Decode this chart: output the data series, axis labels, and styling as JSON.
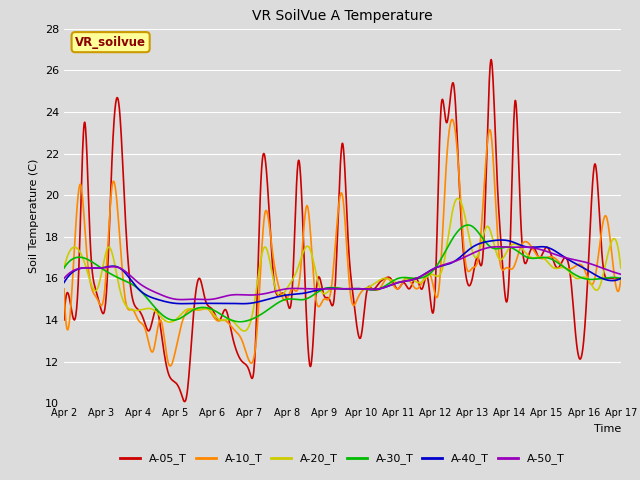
{
  "title": "VR SoilVue A Temperature",
  "xlabel": "Time",
  "ylabel": "Soil Temperature (C)",
  "ylim": [
    10,
    28
  ],
  "xlim": [
    0,
    15
  ],
  "bg_color": "#dcdcdc",
  "plot_bg_color": "#dcdcdc",
  "grid_color": "white",
  "annotation_text": "VR_soilvue",
  "annotation_bg": "#ffff99",
  "annotation_border": "#cc9900",
  "xtick_labels": [
    "Apr 2",
    "Apr 3",
    "Apr 4",
    "Apr 5",
    "Apr 6",
    "Apr 7",
    "Apr 8",
    "Apr 9",
    "Apr 10",
    "Apr 11",
    "Apr 12",
    "Apr 13",
    "Apr 14",
    "Apr 15",
    "Apr 16",
    "Apr 17"
  ],
  "ytick_labels": [
    10,
    12,
    14,
    16,
    18,
    20,
    22,
    24,
    26,
    28
  ],
  "series": {
    "A-05_T": {
      "color": "#cc0000",
      "lw": 1.2
    },
    "A-10_T": {
      "color": "#ff8800",
      "lw": 1.2
    },
    "A-20_T": {
      "color": "#cccc00",
      "lw": 1.2
    },
    "A-30_T": {
      "color": "#00bb00",
      "lw": 1.2
    },
    "A-40_T": {
      "color": "#0000cc",
      "lw": 1.2
    },
    "A-50_T": {
      "color": "#9900bb",
      "lw": 1.2
    }
  },
  "legend_order": [
    "A-05_T",
    "A-10_T",
    "A-20_T",
    "A-30_T",
    "A-40_T",
    "A-50_T"
  ],
  "A05_t": [
    0.0,
    0.2,
    0.4,
    0.55,
    0.7,
    0.85,
    1.0,
    1.15,
    1.3,
    1.5,
    1.65,
    1.8,
    2.0,
    2.15,
    2.3,
    2.5,
    2.65,
    2.8,
    3.0,
    3.15,
    3.3,
    3.5,
    3.65,
    3.8,
    4.0,
    4.2,
    4.35,
    4.5,
    4.65,
    4.8,
    5.0,
    5.15,
    5.3,
    5.5,
    5.65,
    5.8,
    6.0,
    6.15,
    6.3,
    6.5,
    6.65,
    6.8,
    7.0,
    7.15,
    7.3,
    7.5,
    7.65,
    7.8,
    8.0,
    8.15,
    8.3,
    8.5,
    8.65,
    8.8,
    9.0,
    9.15,
    9.3,
    9.5,
    9.65,
    9.8,
    10.0,
    10.15,
    10.3,
    10.5,
    10.65,
    10.8,
    11.0,
    11.15,
    11.3,
    11.5,
    11.65,
    11.8,
    12.0,
    12.15,
    12.3,
    12.5,
    12.65,
    12.8,
    13.0,
    13.15,
    13.3,
    13.5,
    13.65,
    13.8,
    14.0,
    14.15,
    14.3,
    14.5,
    14.65,
    14.8,
    15.0
  ],
  "A05_v": [
    14.0,
    14.5,
    16.5,
    23.5,
    18.0,
    15.5,
    14.5,
    15.5,
    22.0,
    24.0,
    19.0,
    15.5,
    14.5,
    14.0,
    13.5,
    14.5,
    13.0,
    11.5,
    11.0,
    10.5,
    10.3,
    14.5,
    16.0,
    15.0,
    14.5,
    14.0,
    14.5,
    13.5,
    12.5,
    12.0,
    11.5,
    12.5,
    20.5,
    20.0,
    16.0,
    15.2,
    15.0,
    15.5,
    21.5,
    15.5,
    11.8,
    15.5,
    15.2,
    15.0,
    15.5,
    22.5,
    18.0,
    15.0,
    13.2,
    15.3,
    15.5,
    15.8,
    16.0,
    16.0,
    15.5,
    15.8,
    15.5,
    16.0,
    15.5,
    16.0,
    15.5,
    24.0,
    23.5,
    25.3,
    20.5,
    16.5,
    16.0,
    17.0,
    17.5,
    26.5,
    21.5,
    17.0,
    16.5,
    24.5,
    19.0,
    17.0,
    17.5,
    17.0,
    17.5,
    17.0,
    16.5,
    17.0,
    16.0,
    13.0,
    13.0,
    17.5,
    21.5,
    17.0,
    16.0,
    16.0,
    16.0
  ],
  "A10_t": [
    0.0,
    0.25,
    0.45,
    0.6,
    0.75,
    0.9,
    1.1,
    1.3,
    1.5,
    1.65,
    1.85,
    2.0,
    2.2,
    2.4,
    2.6,
    2.8,
    3.0,
    3.2,
    3.5,
    3.7,
    3.9,
    4.1,
    4.3,
    4.6,
    4.8,
    5.0,
    5.2,
    5.4,
    5.6,
    5.8,
    6.0,
    6.15,
    6.35,
    6.55,
    6.75,
    7.0,
    7.2,
    7.5,
    7.7,
    7.9,
    8.1,
    8.3,
    8.5,
    8.7,
    9.0,
    9.2,
    9.5,
    9.7,
    9.9,
    10.1,
    10.3,
    10.6,
    10.8,
    11.0,
    11.2,
    11.5,
    11.7,
    11.9,
    12.1,
    12.3,
    12.6,
    12.8,
    13.0,
    13.2,
    13.5,
    13.7,
    14.0,
    14.3,
    14.6,
    14.8,
    15.0
  ],
  "A10_v": [
    15.5,
    16.5,
    20.5,
    17.5,
    15.5,
    15.0,
    15.5,
    20.5,
    18.0,
    15.0,
    14.5,
    14.0,
    13.5,
    12.5,
    14.0,
    12.0,
    12.5,
    14.0,
    14.5,
    14.5,
    14.5,
    14.0,
    14.0,
    13.5,
    13.0,
    12.0,
    13.5,
    19.0,
    17.5,
    15.5,
    15.0,
    15.5,
    16.0,
    19.5,
    15.5,
    15.0,
    15.5,
    20.0,
    15.5,
    15.0,
    15.5,
    15.5,
    15.5,
    16.0,
    15.5,
    16.0,
    15.5,
    16.0,
    16.0,
    15.5,
    21.5,
    22.0,
    17.0,
    16.5,
    17.5,
    23.0,
    17.5,
    16.5,
    16.5,
    17.5,
    17.5,
    17.0,
    17.0,
    17.0,
    16.5,
    16.5,
    16.5,
    16.0,
    19.0,
    16.5,
    16.0
  ],
  "A20_t": [
    0.0,
    0.3,
    0.6,
    0.9,
    1.2,
    1.5,
    1.8,
    2.1,
    2.4,
    2.7,
    3.0,
    3.3,
    3.6,
    3.9,
    4.2,
    4.5,
    4.8,
    5.1,
    5.4,
    5.7,
    6.0,
    6.3,
    6.6,
    6.9,
    7.2,
    7.5,
    7.8,
    8.1,
    8.4,
    8.7,
    9.0,
    9.3,
    9.6,
    9.9,
    10.2,
    10.5,
    10.8,
    11.1,
    11.4,
    11.7,
    12.0,
    12.3,
    12.6,
    12.9,
    13.2,
    13.5,
    13.8,
    14.1,
    14.4,
    14.7,
    15.0
  ],
  "A20_v": [
    16.5,
    17.5,
    16.5,
    15.5,
    17.5,
    15.5,
    14.5,
    14.5,
    14.5,
    14.0,
    14.0,
    14.5,
    14.5,
    14.5,
    14.0,
    14.0,
    13.5,
    14.5,
    17.5,
    15.5,
    15.5,
    16.5,
    17.5,
    15.5,
    15.5,
    15.5,
    15.5,
    15.5,
    15.8,
    16.0,
    15.8,
    16.0,
    15.8,
    16.2,
    16.5,
    19.5,
    19.0,
    17.0,
    18.5,
    17.0,
    17.5,
    17.5,
    17.0,
    17.0,
    16.5,
    16.5,
    16.0,
    16.0,
    15.5,
    17.5,
    16.5
  ],
  "A30_t": [
    0.0,
    0.5,
    1.0,
    1.5,
    2.0,
    2.5,
    3.0,
    3.5,
    4.0,
    4.5,
    5.0,
    5.5,
    6.0,
    6.5,
    7.0,
    7.5,
    8.0,
    8.5,
    9.0,
    9.5,
    10.0,
    10.5,
    11.0,
    11.5,
    12.0,
    12.5,
    13.0,
    13.5,
    14.0,
    14.5,
    15.0
  ],
  "A30_v": [
    16.5,
    17.0,
    16.5,
    16.0,
    15.5,
    14.5,
    14.0,
    14.5,
    14.5,
    14.0,
    14.0,
    14.5,
    15.0,
    15.0,
    15.5,
    15.5,
    15.5,
    15.5,
    16.0,
    16.0,
    16.5,
    18.0,
    18.5,
    17.5,
    17.5,
    17.0,
    17.0,
    16.5,
    16.0,
    16.0,
    16.0
  ],
  "A40_t": [
    0.0,
    0.5,
    1.0,
    1.5,
    2.0,
    2.5,
    3.0,
    3.5,
    4.0,
    4.5,
    5.0,
    5.5,
    6.0,
    6.5,
    7.0,
    7.5,
    8.0,
    8.5,
    9.0,
    9.5,
    10.0,
    10.5,
    11.0,
    11.5,
    12.0,
    12.5,
    13.0,
    13.5,
    14.0,
    14.5,
    15.0
  ],
  "A40_v": [
    15.8,
    16.5,
    16.5,
    16.5,
    15.5,
    15.0,
    14.8,
    14.8,
    14.8,
    14.8,
    14.8,
    15.0,
    15.2,
    15.3,
    15.5,
    15.5,
    15.5,
    15.5,
    15.8,
    16.0,
    16.5,
    16.8,
    17.5,
    17.8,
    17.8,
    17.5,
    17.5,
    17.0,
    16.5,
    16.0,
    16.0
  ],
  "A50_t": [
    0.0,
    0.5,
    1.0,
    1.5,
    2.0,
    2.5,
    3.0,
    3.5,
    4.0,
    4.5,
    5.0,
    5.5,
    6.0,
    6.5,
    7.0,
    7.5,
    8.0,
    8.5,
    9.0,
    9.5,
    10.0,
    10.5,
    11.0,
    11.5,
    12.0,
    12.5,
    13.0,
    13.5,
    14.0,
    14.5,
    15.0
  ],
  "A50_v": [
    16.0,
    16.5,
    16.5,
    16.5,
    15.8,
    15.3,
    15.0,
    15.0,
    15.0,
    15.2,
    15.2,
    15.3,
    15.5,
    15.5,
    15.5,
    15.5,
    15.5,
    15.5,
    15.8,
    16.0,
    16.5,
    16.8,
    17.2,
    17.5,
    17.5,
    17.5,
    17.3,
    17.0,
    16.8,
    16.5,
    16.2
  ]
}
